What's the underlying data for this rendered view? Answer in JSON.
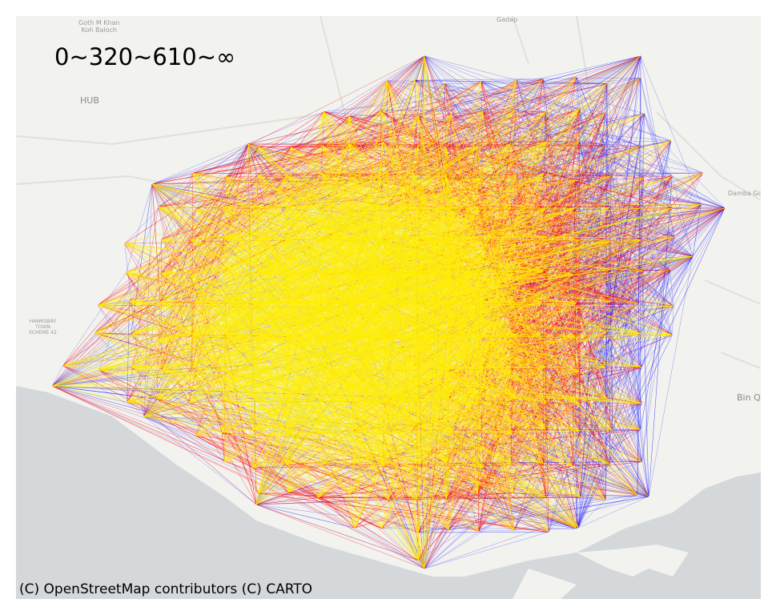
{
  "title": "0~320~610~∞",
  "attribution": "(C) OpenStreetMap contributors (C) CARTO",
  "place_labels": [
    {
      "text": "Goth M Khan\nKoh Baloch"
    },
    {
      "text": "Gadap"
    },
    {
      "text": "HUB"
    },
    {
      "text": "Damba Go"
    },
    {
      "text": "HAWKSBAY\nTOWN\nSCHEME 42"
    },
    {
      "text": "Bin Qa"
    }
  ],
  "legend_colors": {
    "far": "#0000ff",
    "mid": "#ff0000",
    "near": "#ffee00"
  },
  "map_colors": {
    "land": "#f2f2ef",
    "water": "#d4d8db",
    "roads": "#e0e0dc"
  }
}
